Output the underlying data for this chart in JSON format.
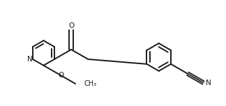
{
  "bg_color": "#ffffff",
  "line_color": "#1a1a1a",
  "line_width": 1.4,
  "font_size": 7.5,
  "figsize": [
    3.24,
    1.52
  ],
  "dpi": 100,
  "xlim": [
    0,
    324
  ],
  "ylim": [
    0,
    152
  ]
}
